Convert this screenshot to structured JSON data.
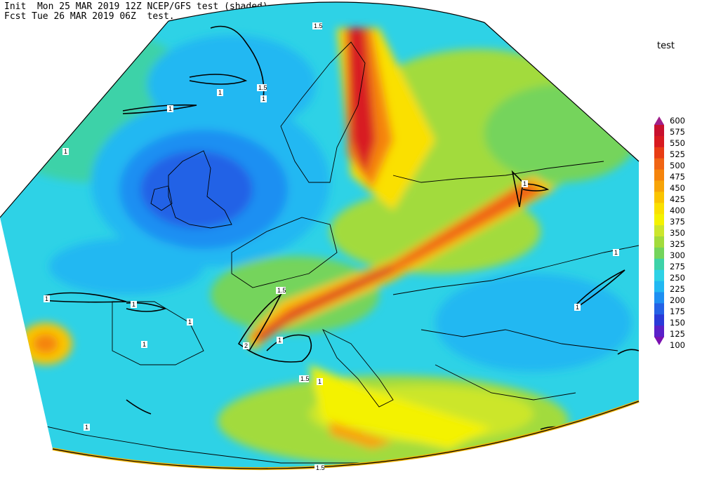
{
  "header": {
    "line1": "Init  Mon 25 MAR 2019 12Z NCEP/GFS test (shaded)",
    "line2": "Fcst Tue 26 MAR 2019 06Z  test."
  },
  "legend": {
    "title": "test",
    "levels": [
      600,
      575,
      550,
      525,
      500,
      475,
      450,
      425,
      400,
      375,
      350,
      325,
      300,
      275,
      250,
      225,
      200,
      175,
      150,
      125,
      100
    ],
    "colors": [
      "#a0208a",
      "#c8102e",
      "#d81a20",
      "#e83c14",
      "#f06414",
      "#f5840c",
      "#f7a408",
      "#fac400",
      "#fae000",
      "#f4f200",
      "#cce62c",
      "#a2db3c",
      "#74d45c",
      "#3ed2a8",
      "#2ed2e6",
      "#22b8f2",
      "#1e8ff2",
      "#2462e6",
      "#2a3ad8",
      "#5a20c8",
      "#7a10b0"
    ]
  },
  "contour_labels": [
    "1.5",
    "1",
    "1",
    "1.5",
    "1",
    "1",
    "1",
    "1.5",
    "1",
    "1",
    "1",
    "1",
    "2",
    "1",
    "1.5",
    "1",
    "1",
    "1",
    "1",
    "1.5"
  ]
}
